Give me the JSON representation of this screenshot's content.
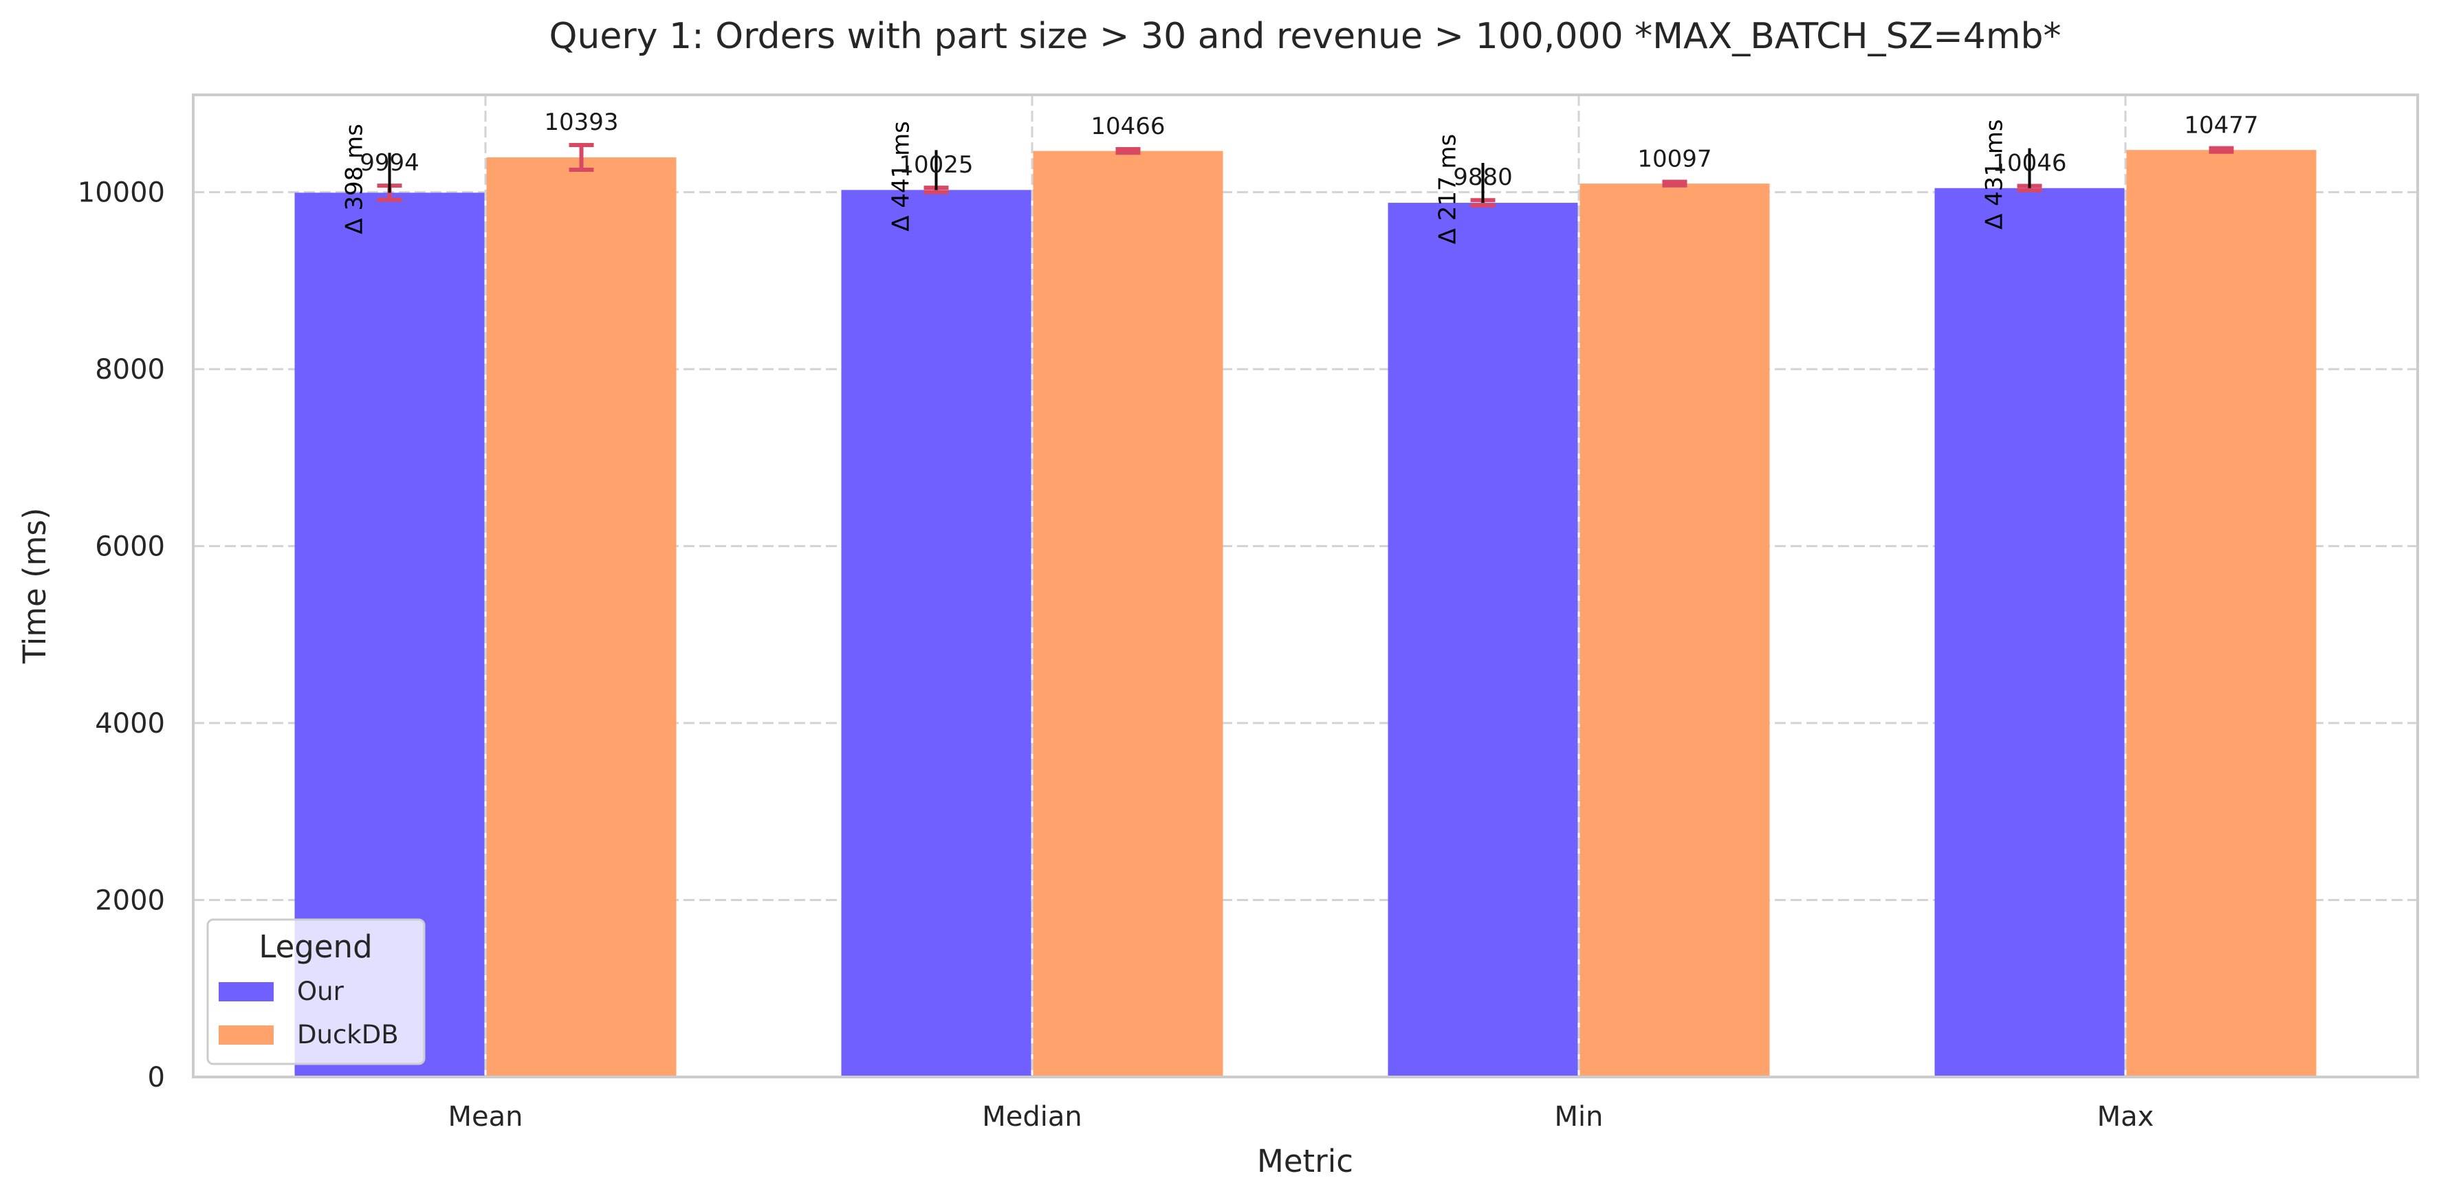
{
  "chart_data": {
    "type": "bar",
    "title": "Query 1: Orders with part size > 30 and revenue > 100,000 *MAX_BATCH_SZ=4mb*",
    "xlabel": "Metric",
    "ylabel": "Time (ms)",
    "categories": [
      "Mean",
      "Median",
      "Min",
      "Max"
    ],
    "ylim": [
      0,
      11100
    ],
    "yticks": [
      0,
      2000,
      4000,
      6000,
      8000,
      10000
    ],
    "grid": true,
    "series": [
      {
        "name": "Our",
        "color": "#6f60ff",
        "values": [
          9994,
          10025,
          9880,
          10046
        ],
        "error": [
          80,
          25,
          30,
          25
        ]
      },
      {
        "name": "DuckDB",
        "color": "#ffa26b",
        "values": [
          10393,
          10466,
          10097,
          10477
        ],
        "error": [
          140,
          20,
          20,
          20
        ]
      }
    ],
    "error_color": "#d94862",
    "delta_labels": [
      "Δ 398 ms",
      "Δ 441 ms",
      "Δ 217 ms",
      "Δ 431 ms"
    ],
    "legend": {
      "title": "Legend",
      "position": "lower-left"
    }
  }
}
